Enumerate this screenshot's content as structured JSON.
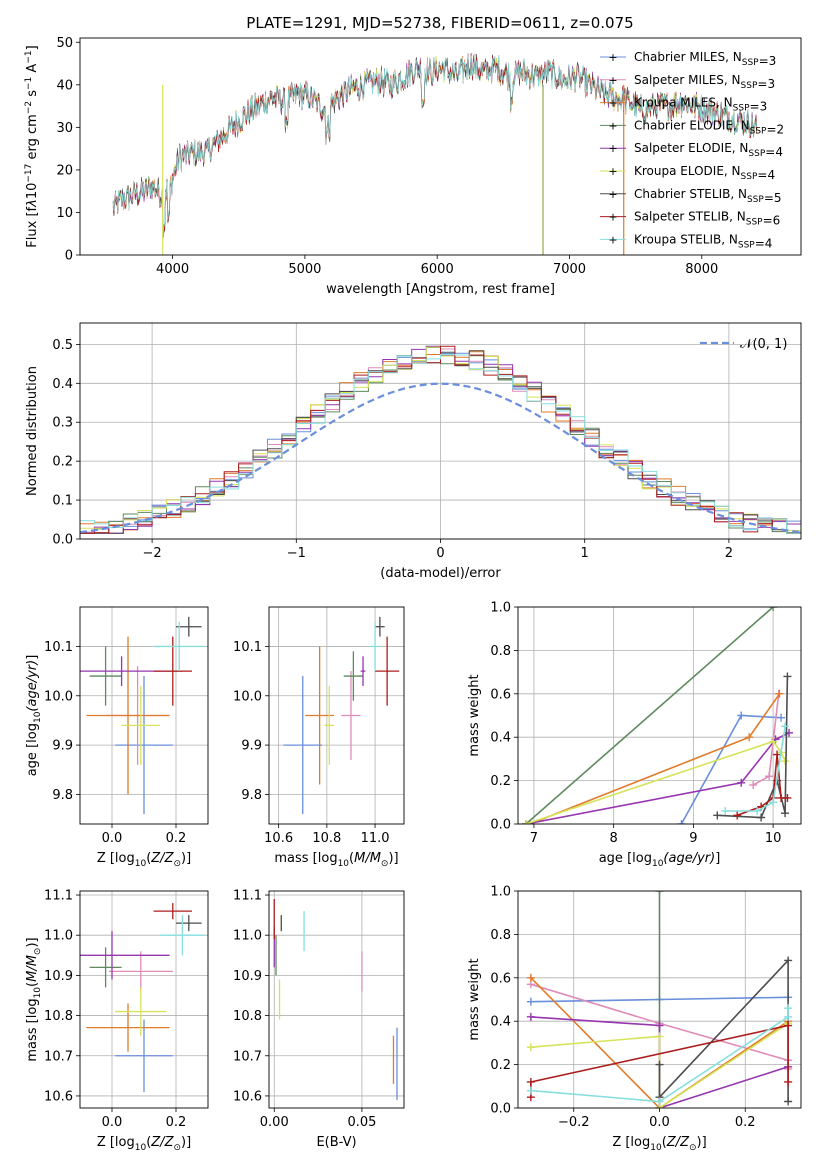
{
  "title": "PLATE=1291, MJD=52738, FIBERID=0611, z=0.075",
  "models": [
    {
      "name": "Chabrier MILES, N<sub>SSP</sub>=3",
      "color": "#6a8fdb",
      "marker": "+"
    },
    {
      "name": "Salpeter MILES, N<sub>SSP</sub>=3",
      "color": "#e08cb8",
      "marker": "+"
    },
    {
      "name": "Kroupa MILES, N<sub>SSP</sub>=3",
      "color": "#e07b2a",
      "marker": "+"
    },
    {
      "name": "Chabrier ELODIE, N<sub>SSP</sub>=2",
      "color": "#5e8a5e",
      "marker": "+"
    },
    {
      "name": "Salpeter ELODIE, N<sub>SSP</sub>=4",
      "color": "#9535b0",
      "marker": "+"
    },
    {
      "name": "Kroupa ELODIE, N<sub>SSP</sub>=4",
      "color": "#d6e35a",
      "marker": "+"
    },
    {
      "name": "Chabrier STELIB, N<sub>SSP</sub>=5",
      "color": "#4d4d4d",
      "marker": "+"
    },
    {
      "name": "Salpeter STELIB, N<sub>SSP</sub>=6",
      "color": "#ad1d1d",
      "marker": "+"
    },
    {
      "name": "Kroupa STELIB, N<sub>SSP</sub>=4",
      "color": "#86dede",
      "marker": "+"
    }
  ],
  "chart_data": [
    {
      "id": "spectrum",
      "type": "line",
      "xlabel": "wavelength [Angstrom, rest frame]",
      "ylabel": "Flux [f<tspan font-style=\"italic\">λ</tspan>10<tspan dy=\"-5\" font-size=\"9\">−17</tspan><tspan dy=\"5\"> erg cm</tspan><tspan dy=\"-5\" font-size=\"9\">−2</tspan><tspan dy=\"5\"> s</tspan><tspan dy=\"-5\" font-size=\"9\">−1</tspan><tspan dy=\"5\"> A</tspan><tspan dy=\"-5\" font-size=\"9\">−1</tspan><tspan dy=\"5\">]</tspan>",
      "xlim": [
        3300,
        8750
      ],
      "ylim": [
        0,
        51
      ],
      "xticks": [
        4000,
        5000,
        6000,
        7000,
        8000
      ],
      "yticks": [
        0,
        10,
        20,
        30,
        40,
        50
      ],
      "envelope_x": [
        3550,
        3620,
        3700,
        3780,
        3860,
        3920,
        3980,
        4050,
        4150,
        4250,
        4350,
        4450,
        4550,
        4650,
        4750,
        4850,
        4950,
        5050,
        5150,
        5250,
        5350,
        5450,
        5550,
        5650,
        5750,
        5850,
        5950,
        6050,
        6150,
        6250,
        6350,
        6450,
        6550,
        6650,
        6750,
        6850,
        6950,
        7050,
        7150,
        7250,
        7350,
        7450,
        7550,
        7650,
        7750,
        7850,
        7950,
        8050,
        8150,
        8250,
        8350,
        8420
      ],
      "envelope_y": [
        11,
        13,
        14,
        15,
        16,
        14,
        16,
        23,
        24,
        24,
        27,
        30,
        33,
        35,
        37,
        36,
        38,
        37,
        34,
        37,
        39,
        40,
        41,
        40,
        42,
        44,
        43,
        44,
        42,
        45,
        43,
        44,
        42,
        43,
        42,
        43,
        41,
        42,
        40,
        38,
        37,
        36,
        34,
        35,
        35,
        36,
        35,
        34,
        33,
        32,
        31,
        30
      ]
    },
    {
      "id": "residuals",
      "type": "histogram",
      "xlabel": "(data-model)/error",
      "ylabel": "Normed distribution",
      "xlim": [
        -2.5,
        2.5
      ],
      "ylim": [
        0,
        0.555
      ],
      "xticks": [
        -2,
        -1,
        0,
        1,
        2
      ],
      "yticks": [
        0.0,
        0.1,
        0.2,
        0.3,
        0.4,
        0.5
      ],
      "bin_width": 0.1,
      "bins_from": -2.5,
      "reference": {
        "label": "𝒩(0, 1)",
        "color": "#6a8fdb"
      }
    },
    {
      "id": "age-vs-Z",
      "type": "errorbar",
      "xlabel": "Z [log<tspan dy=\"4\" font-size=\"9\">10</tspan><tspan dy=\"-4\">(</tspan><tspan font-style=\"italic\">Z/Z</tspan><tspan dy=\"4\" font-size=\"9\">⊙</tspan><tspan dy=\"-4\">)]</tspan>",
      "ylabel": "age  [log<tspan dy=\"4\" font-size=\"9\">10</tspan><tspan dy=\"-4\" font-style=\"italic\">(age/yr)</tspan>]",
      "xlim": [
        -0.1,
        0.3
      ],
      "ylim": [
        9.74,
        10.18
      ],
      "xticks": [
        0.0,
        0.2
      ],
      "yticks": [
        9.8,
        9.9,
        10.0,
        10.1
      ],
      "points": [
        {
          "m": 0,
          "x": 0.1,
          "xe": 0.09,
          "y": 9.9,
          "ye": 0.14
        },
        {
          "m": 1,
          "x": 0.08,
          "xe": 0.1,
          "y": 9.96,
          "ye": 0.1
        },
        {
          "m": 2,
          "x": 0.05,
          "xe": 0.13,
          "y": 9.96,
          "ye": 0.16
        },
        {
          "m": 3,
          "x": -0.02,
          "xe": 0.05,
          "y": 10.04,
          "ye": 0.06
        },
        {
          "m": 4,
          "x": 0.03,
          "xe": 0.19,
          "y": 10.05,
          "ye": 0.03
        },
        {
          "m": 5,
          "x": 0.09,
          "xe": 0.06,
          "y": 9.94,
          "ye": 0.08
        },
        {
          "m": 6,
          "x": 0.24,
          "xe": 0.04,
          "y": 10.14,
          "ye": 0.02
        },
        {
          "m": 7,
          "x": 0.19,
          "xe": 0.06,
          "y": 10.05,
          "ye": 0.07
        },
        {
          "m": 8,
          "x": 0.21,
          "xe": 0.08,
          "y": 10.1,
          "ye": 0.05
        }
      ]
    },
    {
      "id": "age-vs-mass",
      "type": "errorbar",
      "xlabel": "mass [log<tspan dy=\"4\" font-size=\"9\">10</tspan><tspan dy=\"-4\">(</tspan><tspan font-style=\"italic\">M/M</tspan><tspan dy=\"4\" font-size=\"9\">⊙</tspan><tspan dy=\"-4\">)]</tspan>",
      "ylabel": "",
      "xlim": [
        10.56,
        11.12
      ],
      "ylim": [
        9.74,
        10.18
      ],
      "xticks": [
        10.6,
        10.8,
        11.0
      ],
      "yticks": [
        9.8,
        9.9,
        10.0,
        10.1
      ],
      "points": [
        {
          "m": 0,
          "x": 10.7,
          "xe": 0.08,
          "y": 9.9,
          "ye": 0.14
        },
        {
          "m": 1,
          "x": 10.9,
          "xe": 0.04,
          "y": 9.96,
          "ye": 0.09
        },
        {
          "m": 2,
          "x": 10.77,
          "xe": 0.06,
          "y": 9.96,
          "ye": 0.14
        },
        {
          "m": 3,
          "x": 10.91,
          "xe": 0.04,
          "y": 10.04,
          "ye": 0.05
        },
        {
          "m": 4,
          "x": 10.95,
          "xe": 0.01,
          "y": 10.05,
          "ye": 0.03
        },
        {
          "m": 5,
          "x": 10.81,
          "xe": 0.02,
          "y": 9.94,
          "ye": 0.08
        },
        {
          "m": 6,
          "x": 11.02,
          "xe": 0.02,
          "y": 10.14,
          "ye": 0.02
        },
        {
          "m": 7,
          "x": 11.05,
          "xe": 0.05,
          "y": 10.05,
          "ye": 0.07
        },
        {
          "m": 8,
          "x": 11.0,
          "xe": 0.02,
          "y": 10.1,
          "ye": 0.05
        }
      ]
    },
    {
      "id": "mass-weight-vs-age",
      "type": "line",
      "xlabel": "age  [log<tspan dy=\"4\" font-size=\"9\">10</tspan><tspan dy=\"-4\" font-style=\"italic\">(age/yr)</tspan>]",
      "ylabel": "mass weight",
      "xlim": [
        6.8,
        10.35
      ],
      "ylim": [
        0,
        1
      ],
      "xticks": [
        7,
        8,
        9,
        10
      ],
      "yticks": [
        0.0,
        0.2,
        0.4,
        0.6,
        0.8,
        1.0
      ],
      "series": [
        {
          "m": 0,
          "x": [
            8.85,
            9.6,
            10.1
          ],
          "y": [
            0.0,
            0.5,
            0.49
          ]
        },
        {
          "m": 1,
          "x": [
            9.75,
            9.95,
            10.07
          ],
          "y": [
            0.18,
            0.22,
            0.6
          ]
        },
        {
          "m": 2,
          "x": [
            6.95,
            9.7,
            10.08
          ],
          "y": [
            0.0,
            0.4,
            0.6
          ]
        },
        {
          "m": 3,
          "x": [
            6.9,
            10.0
          ],
          "y": [
            0.0,
            1.0
          ]
        },
        {
          "m": 4,
          "x": [
            6.9,
            9.6,
            10.03,
            10.2
          ],
          "y": [
            0.0,
            0.19,
            0.39,
            0.42
          ]
        },
        {
          "m": 5,
          "x": [
            6.9,
            10.0,
            10.1,
            10.15
          ],
          "y": [
            0.0,
            0.38,
            0.33,
            0.29
          ]
        },
        {
          "m": 6,
          "x": [
            9.3,
            9.85,
            10.05,
            10.15,
            10.18
          ],
          "y": [
            0.04,
            0.03,
            0.2,
            0.05,
            0.68
          ]
        },
        {
          "m": 7,
          "x": [
            9.55,
            9.85,
            10.0,
            10.05,
            10.1,
            10.18
          ],
          "y": [
            0.04,
            0.08,
            0.12,
            0.32,
            0.12,
            0.12
          ]
        },
        {
          "m": 8,
          "x": [
            9.4,
            9.8,
            10.0,
            10.15
          ],
          "y": [
            0.06,
            0.06,
            0.1,
            0.45
          ]
        }
      ]
    },
    {
      "id": "mass-vs-Z",
      "type": "errorbar",
      "xlabel": "Z [log<tspan dy=\"4\" font-size=\"9\">10</tspan><tspan dy=\"-4\">(</tspan><tspan font-style=\"italic\">Z/Z</tspan><tspan dy=\"4\" font-size=\"9\">⊙</tspan><tspan dy=\"-4\">)]</tspan>",
      "ylabel": "mass [log<tspan dy=\"4\" font-size=\"9\">10</tspan><tspan dy=\"-4\">(</tspan><tspan font-style=\"italic\">M/M</tspan><tspan dy=\"4\" font-size=\"9\">⊙</tspan><tspan dy=\"-4\">)]</tspan>",
      "xlim": [
        -0.1,
        0.3
      ],
      "ylim": [
        10.57,
        11.11
      ],
      "xticks": [
        0.0,
        0.2
      ],
      "yticks": [
        10.6,
        10.7,
        10.8,
        10.9,
        11.0,
        11.1
      ],
      "points": [
        {
          "m": 0,
          "x": 0.1,
          "xe": 0.09,
          "y": 10.7,
          "ye": 0.09
        },
        {
          "m": 1,
          "x": 0.09,
          "xe": 0.1,
          "y": 10.91,
          "ye": 0.05
        },
        {
          "m": 2,
          "x": 0.05,
          "xe": 0.13,
          "y": 10.77,
          "ye": 0.06
        },
        {
          "m": 3,
          "x": -0.02,
          "xe": 0.05,
          "y": 10.92,
          "ye": 0.05
        },
        {
          "m": 4,
          "x": 0.0,
          "xe": 0.18,
          "y": 10.95,
          "ye": 0.06
        },
        {
          "m": 5,
          "x": 0.09,
          "xe": 0.08,
          "y": 10.81,
          "ye": 0.06
        },
        {
          "m": 6,
          "x": 0.24,
          "xe": 0.04,
          "y": 11.03,
          "ye": 0.02
        },
        {
          "m": 7,
          "x": 0.19,
          "xe": 0.06,
          "y": 11.06,
          "ye": 0.02
        },
        {
          "m": 8,
          "x": 0.22,
          "xe": 0.07,
          "y": 11.0,
          "ye": 0.05
        }
      ]
    },
    {
      "id": "mass-vs-EBV",
      "type": "errorbar",
      "xlabel": "E(B-V)",
      "ylabel": "",
      "xlim": [
        -0.003,
        0.074
      ],
      "ylim": [
        10.57,
        11.11
      ],
      "xticks": [
        0.0,
        0.05
      ],
      "xtick_labels": [
        "0.00",
        "0.05"
      ],
      "yticks": [
        10.6,
        10.7,
        10.8,
        10.9,
        11.0,
        11.1
      ],
      "points": [
        {
          "m": 0,
          "x": 0.07,
          "xe": 0.0,
          "y": 10.68,
          "ye": 0.09
        },
        {
          "m": 1,
          "x": 0.05,
          "xe": 0.0,
          "y": 10.91,
          "ye": 0.05
        },
        {
          "m": 2,
          "x": 0.068,
          "xe": 0.0,
          "y": 10.69,
          "ye": 0.06
        },
        {
          "m": 3,
          "x": 0.001,
          "xe": 0.0,
          "y": 10.95,
          "ye": 0.05
        },
        {
          "m": 4,
          "x": 0.0,
          "xe": 0.0,
          "y": 10.97,
          "ye": 0.05
        },
        {
          "m": 5,
          "x": 0.003,
          "xe": 0.0,
          "y": 10.84,
          "ye": 0.05
        },
        {
          "m": 6,
          "x": 0.004,
          "xe": 0.0,
          "y": 11.03,
          "ye": 0.02
        },
        {
          "m": 7,
          "x": 0.0,
          "xe": 0.0,
          "y": 11.04,
          "ye": 0.05
        },
        {
          "m": 8,
          "x": 0.017,
          "xe": 0.0,
          "y": 11.01,
          "ye": 0.05
        }
      ]
    },
    {
      "id": "mass-weight-vs-Z",
      "type": "line",
      "xlabel": "Z [log<tspan dy=\"4\" font-size=\"9\">10</tspan><tspan dy=\"-4\">(</tspan><tspan font-style=\"italic\">Z/Z</tspan><tspan dy=\"4\" font-size=\"9\">⊙</tspan><tspan dy=\"-4\">)]</tspan>",
      "ylabel": "mass weight",
      "xlim": [
        -0.33,
        0.33
      ],
      "ylim": [
        0,
        1
      ],
      "xticks": [
        -0.2,
        0.0,
        0.2
      ],
      "yticks": [
        0.0,
        0.2,
        0.4,
        0.6,
        0.8,
        1.0
      ],
      "series": [
        {
          "m": 0,
          "x": [
            -0.3,
            0.0,
            0.3
          ],
          "y": [
            0.49,
            0.5,
            0.51
          ]
        },
        {
          "m": 1,
          "x": [
            -0.3,
            0.0,
            0.3,
            0.3
          ],
          "y": [
            0.57,
            0.39,
            0.22,
            0.18
          ]
        },
        {
          "m": 2,
          "x": [
            -0.3,
            0.0,
            0.3
          ],
          "y": [
            0.6,
            0.0,
            0.4
          ]
        },
        {
          "m": 3,
          "x": [
            0.0,
            0.0
          ],
          "y": [
            0.0,
            1.0
          ]
        },
        {
          "m": 4,
          "x": [
            -0.3,
            0.0,
            0.0,
            0.3
          ],
          "y": [
            0.42,
            0.38,
            0.0,
            0.19
          ]
        },
        {
          "m": 5,
          "x": [
            -0.3,
            0.0,
            0.0,
            0.3
          ],
          "y": [
            0.28,
            0.33,
            0.0,
            0.39
          ]
        },
        {
          "m": 6,
          "x": [
            0.0,
            0.0,
            0.3,
            0.3
          ],
          "y": [
            0.2,
            0.05,
            0.68,
            0.03
          ]
        },
        {
          "m": 7,
          "x": [
            -0.3,
            -0.3,
            0.3,
            0.3
          ],
          "y": [
            0.05,
            0.12,
            0.38,
            0.12
          ]
        },
        {
          "m": 8,
          "x": [
            -0.3,
            0.0,
            0.3,
            0.3
          ],
          "y": [
            0.08,
            0.03,
            0.42,
            0.46
          ]
        }
      ]
    }
  ]
}
